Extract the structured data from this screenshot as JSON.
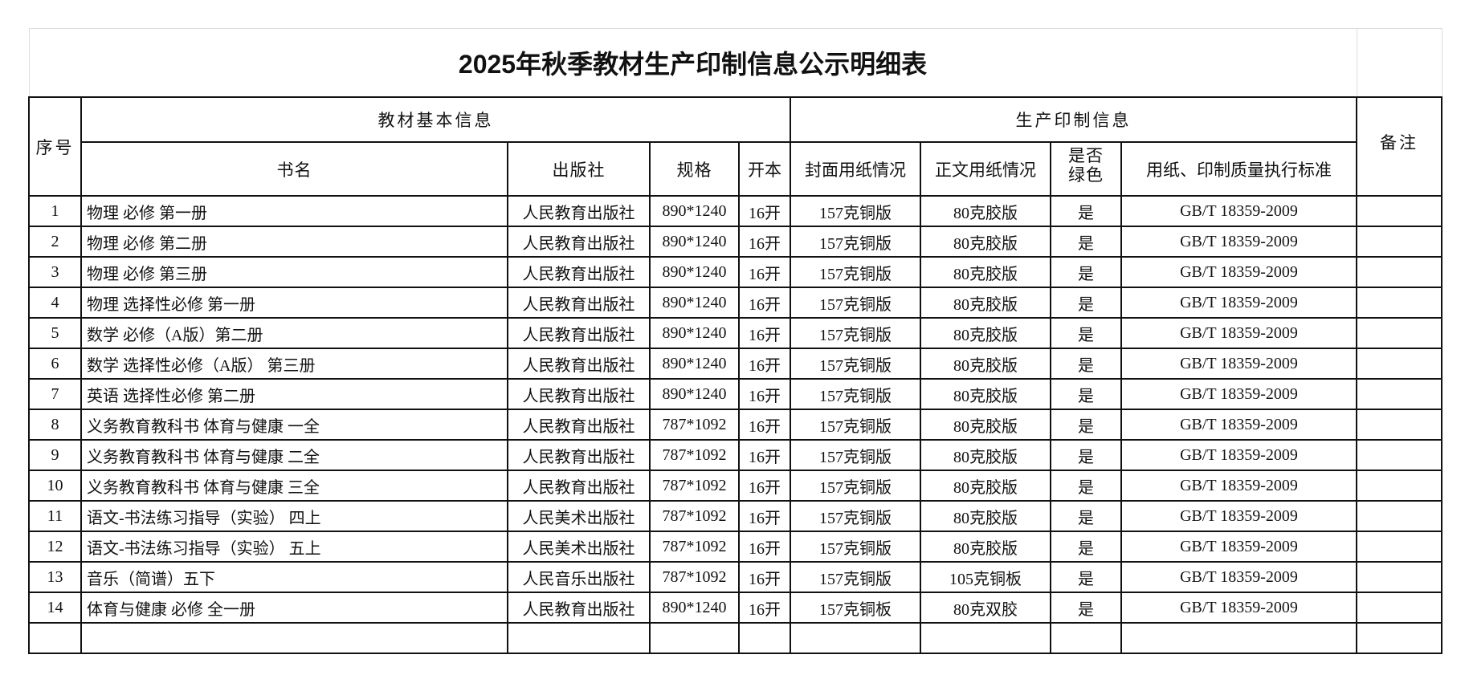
{
  "title": "2025年秋季教材生产印制信息公示明细表",
  "headers": {
    "seq": "序号",
    "basic_info": "教材基本信息",
    "production_info": "生产印制信息",
    "remarks": "备注",
    "book_name": "书名",
    "publisher": "出版社",
    "spec": "规格",
    "format": "开本",
    "cover_paper": "封面用纸情况",
    "body_paper": "正文用纸情况",
    "green": "是否绿色",
    "standard": "用纸、印制质量执行标准"
  },
  "rows": [
    {
      "seq": "1",
      "name": "物理 必修 第一册",
      "publisher": "人民教育出版社",
      "spec": "890*1240",
      "format": "16开",
      "cover": "157克铜版",
      "body": "80克胶版",
      "green": "是",
      "standard": "GB/T 18359-2009",
      "remarks": ""
    },
    {
      "seq": "2",
      "name": "物理 必修 第二册",
      "publisher": "人民教育出版社",
      "spec": "890*1240",
      "format": "16开",
      "cover": "157克铜版",
      "body": "80克胶版",
      "green": "是",
      "standard": "GB/T 18359-2009",
      "remarks": ""
    },
    {
      "seq": "3",
      "name": "物理 必修 第三册",
      "publisher": "人民教育出版社",
      "spec": "890*1240",
      "format": "16开",
      "cover": "157克铜版",
      "body": "80克胶版",
      "green": "是",
      "standard": "GB/T 18359-2009",
      "remarks": ""
    },
    {
      "seq": "4",
      "name": "物理 选择性必修 第一册",
      "publisher": "人民教育出版社",
      "spec": "890*1240",
      "format": "16开",
      "cover": "157克铜版",
      "body": "80克胶版",
      "green": "是",
      "standard": "GB/T 18359-2009",
      "remarks": ""
    },
    {
      "seq": "5",
      "name": "数学 必修（A版）第二册",
      "publisher": "人民教育出版社",
      "spec": "890*1240",
      "format": "16开",
      "cover": "157克铜版",
      "body": "80克胶版",
      "green": "是",
      "standard": "GB/T 18359-2009",
      "remarks": ""
    },
    {
      "seq": "6",
      "name": "数学 选择性必修（A版） 第三册",
      "publisher": "人民教育出版社",
      "spec": "890*1240",
      "format": "16开",
      "cover": "157克铜版",
      "body": "80克胶版",
      "green": "是",
      "standard": "GB/T 18359-2009",
      "remarks": ""
    },
    {
      "seq": "7",
      "name": "英语 选择性必修 第二册",
      "publisher": "人民教育出版社",
      "spec": "890*1240",
      "format": "16开",
      "cover": "157克铜版",
      "body": "80克胶版",
      "green": "是",
      "standard": "GB/T 18359-2009",
      "remarks": ""
    },
    {
      "seq": "8",
      "name": "义务教育教科书 体育与健康  一全",
      "publisher": "人民教育出版社",
      "spec": "787*1092",
      "format": "16开",
      "cover": "157克铜版",
      "body": "80克胶版",
      "green": "是",
      "standard": "GB/T 18359-2009",
      "remarks": ""
    },
    {
      "seq": "9",
      "name": "义务教育教科书 体育与健康  二全",
      "publisher": "人民教育出版社",
      "spec": "787*1092",
      "format": "16开",
      "cover": "157克铜版",
      "body": "80克胶版",
      "green": "是",
      "standard": "GB/T 18359-2009",
      "remarks": ""
    },
    {
      "seq": "10",
      "name": "义务教育教科书 体育与健康  三全",
      "publisher": "人民教育出版社",
      "spec": "787*1092",
      "format": "16开",
      "cover": "157克铜版",
      "body": "80克胶版",
      "green": "是",
      "standard": "GB/T 18359-2009",
      "remarks": ""
    },
    {
      "seq": "11",
      "name": "语文-书法练习指导（实验） 四上",
      "publisher": "人民美术出版社",
      "spec": "787*1092",
      "format": "16开",
      "cover": "157克铜版",
      "body": "80克胶版",
      "green": "是",
      "standard": "GB/T 18359-2009",
      "remarks": ""
    },
    {
      "seq": "12",
      "name": "语文-书法练习指导（实验） 五上",
      "publisher": "人民美术出版社",
      "spec": "787*1092",
      "format": "16开",
      "cover": "157克铜版",
      "body": "80克胶版",
      "green": "是",
      "standard": "GB/T 18359-2009",
      "remarks": ""
    },
    {
      "seq": "13",
      "name": "音乐（简谱）五下",
      "publisher": "人民音乐出版社",
      "spec": "787*1092",
      "format": "16开",
      "cover": "157克铜版",
      "body": "105克铜板",
      "green": "是",
      "standard": "GB/T 18359-2009",
      "remarks": ""
    },
    {
      "seq": "14",
      "name": "体育与健康 必修 全一册",
      "publisher": "人民教育出版社",
      "spec": "890*1240",
      "format": "16开",
      "cover": "157克铜板",
      "body": "80克双胶",
      "green": "是",
      "standard": "GB/T 18359-2009",
      "remarks": ""
    },
    {
      "seq": "",
      "name": "",
      "publisher": "",
      "spec": "",
      "format": "",
      "cover": "",
      "body": "",
      "green": "",
      "standard": "",
      "remarks": ""
    }
  ]
}
